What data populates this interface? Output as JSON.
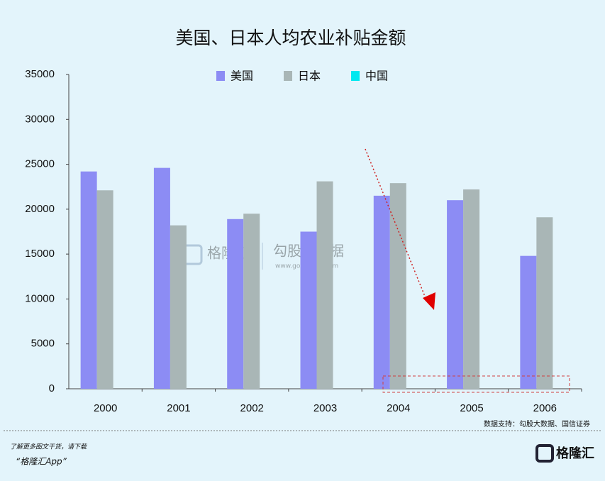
{
  "chart_data": {
    "type": "bar",
    "title": "美国、日本人均农业补贴金额",
    "categories": [
      "2000",
      "2001",
      "2002",
      "2003",
      "2004",
      "2005",
      "2006"
    ],
    "series": [
      {
        "name": "美国",
        "color": "#8c8cf4",
        "values": [
          24200,
          24600,
          18900,
          17500,
          21500,
          21000,
          14800
        ]
      },
      {
        "name": "日本",
        "color": "#a9b6b6",
        "values": [
          22100,
          18200,
          19500,
          23100,
          22900,
          22200,
          19100
        ]
      },
      {
        "name": "中国",
        "color": "#00e8f0",
        "values": [
          null,
          null,
          null,
          null,
          null,
          null,
          null
        ]
      }
    ],
    "ylim": [
      0,
      35000
    ],
    "yticks": [
      0,
      5000,
      10000,
      15000,
      20000,
      25000,
      30000,
      35000
    ],
    "legend": "top",
    "source": "数据支持：勾股大数据、国信证券",
    "watermark": [
      "格隆汇",
      "勾股大数据",
      "www.gogudata.com"
    ],
    "footer": {
      "line1": "了解更多图文干货，请下载",
      "line2": "“格隆汇App”",
      "logo": "格隆汇"
    }
  }
}
